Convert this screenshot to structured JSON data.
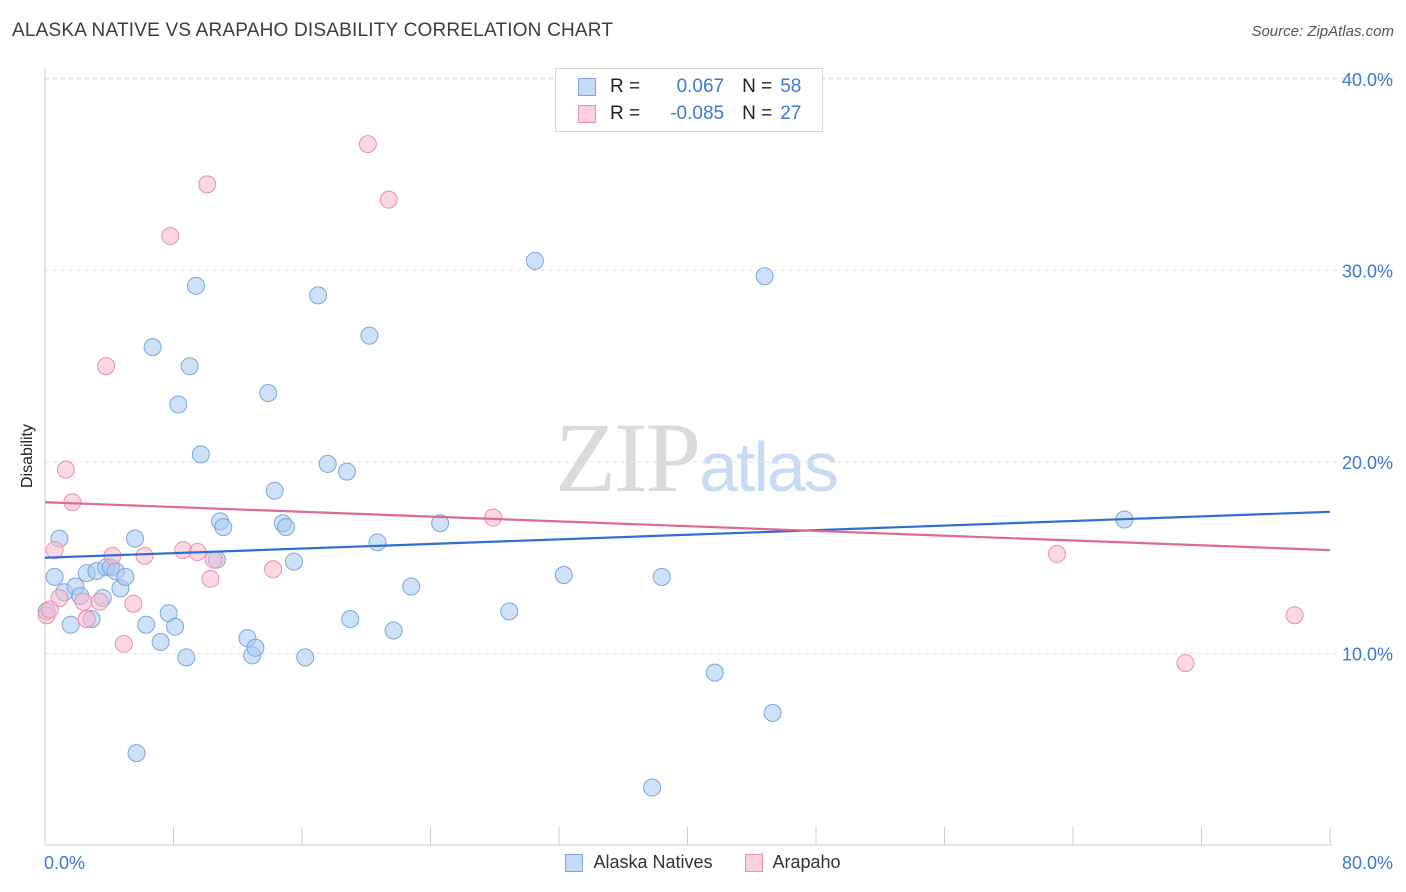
{
  "title": "ALASKA NATIVE VS ARAPAHO DISABILITY CORRELATION CHART",
  "source": "Source: ZipAtlas.com",
  "watermark": {
    "zip": "ZIP",
    "atlas": "atlas"
  },
  "legend": {
    "rows": [
      {
        "r_label": "R =",
        "r_value": "0.067",
        "n_label": "N =",
        "n_value": "58",
        "color": "#a8c8f0"
      },
      {
        "r_label": "R =",
        "r_value": "-0.085",
        "n_label": "N =",
        "n_value": "27",
        "color": "#f5b8cb"
      }
    ]
  },
  "chart_data": {
    "type": "scatter",
    "title": "ALASKA NATIVE VS ARAPAHO DISABILITY CORRELATION CHART",
    "xlabel": "",
    "ylabel": "Disability",
    "xlim": [
      0,
      80
    ],
    "ylim": [
      0,
      40
    ],
    "x_tick_labels": [
      "0.0%",
      "80.0%"
    ],
    "y_ticks": [
      10,
      20,
      30,
      40
    ],
    "y_tick_labels": [
      "10.0%",
      "20.0%",
      "30.0%",
      "40.0%"
    ],
    "grid": "horizontal dashed",
    "legend_position": "bottom-center",
    "series": [
      {
        "name": "Alaska Natives",
        "color": "#a8c8f0",
        "edge": "#7aa7e0",
        "line_color": "#2d6fd1",
        "trend": [
          [
            0,
            15.0
          ],
          [
            80,
            17.4
          ]
        ],
        "points": [
          [
            0.1,
            12.2
          ],
          [
            0.6,
            14.0
          ],
          [
            0.9,
            16.0
          ],
          [
            1.2,
            13.2
          ],
          [
            1.6,
            11.5
          ],
          [
            1.9,
            13.5
          ],
          [
            2.2,
            13.0
          ],
          [
            2.6,
            14.2
          ],
          [
            2.9,
            11.8
          ],
          [
            3.2,
            14.3
          ],
          [
            3.6,
            12.9
          ],
          [
            3.8,
            14.5
          ],
          [
            4.1,
            14.5
          ],
          [
            4.4,
            14.3
          ],
          [
            4.7,
            13.4
          ],
          [
            5.0,
            14.0
          ],
          [
            5.6,
            16.0
          ],
          [
            5.7,
            4.8
          ],
          [
            6.3,
            11.5
          ],
          [
            6.7,
            26.0
          ],
          [
            7.2,
            10.6
          ],
          [
            7.7,
            12.1
          ],
          [
            8.1,
            11.4
          ],
          [
            8.3,
            23.0
          ],
          [
            8.8,
            9.8
          ],
          [
            9.0,
            25.0
          ],
          [
            9.4,
            29.2
          ],
          [
            9.7,
            20.4
          ],
          [
            10.7,
            14.9
          ],
          [
            10.9,
            16.9
          ],
          [
            11.1,
            16.6
          ],
          [
            12.6,
            10.8
          ],
          [
            12.9,
            9.9
          ],
          [
            13.1,
            10.3
          ],
          [
            13.9,
            23.6
          ],
          [
            14.3,
            18.5
          ],
          [
            14.8,
            16.8
          ],
          [
            15.0,
            16.6
          ],
          [
            15.5,
            14.8
          ],
          [
            16.2,
            9.8
          ],
          [
            17.0,
            28.7
          ],
          [
            17.6,
            19.9
          ],
          [
            18.8,
            19.5
          ],
          [
            19.0,
            11.8
          ],
          [
            20.2,
            26.6
          ],
          [
            20.7,
            15.8
          ],
          [
            21.7,
            11.2
          ],
          [
            22.8,
            13.5
          ],
          [
            24.6,
            16.8
          ],
          [
            28.9,
            12.2
          ],
          [
            30.5,
            30.5
          ],
          [
            32.3,
            14.1
          ],
          [
            37.8,
            3.0
          ],
          [
            38.4,
            14.0
          ],
          [
            41.7,
            9.0
          ],
          [
            44.8,
            29.7
          ],
          [
            45.3,
            6.9
          ],
          [
            67.2,
            17.0
          ]
        ]
      },
      {
        "name": "Arapaho",
        "color": "#f5b8cb",
        "edge": "#ec8fae",
        "line_color": "#e0698f",
        "trend": [
          [
            0,
            17.9
          ],
          [
            80,
            15.4
          ]
        ],
        "points": [
          [
            0.1,
            12.0
          ],
          [
            0.6,
            15.4
          ],
          [
            0.9,
            12.9
          ],
          [
            1.3,
            19.6
          ],
          [
            1.7,
            17.9
          ],
          [
            2.4,
            12.7
          ],
          [
            2.6,
            11.8
          ],
          [
            3.4,
            12.7
          ],
          [
            3.8,
            25.0
          ],
          [
            4.2,
            15.1
          ],
          [
            4.9,
            10.5
          ],
          [
            5.5,
            12.6
          ],
          [
            6.2,
            15.1
          ],
          [
            7.8,
            31.8
          ],
          [
            8.6,
            15.4
          ],
          [
            9.5,
            15.3
          ],
          [
            10.1,
            34.5
          ],
          [
            10.3,
            13.9
          ],
          [
            10.5,
            14.9
          ],
          [
            14.2,
            14.4
          ],
          [
            20.1,
            36.6
          ],
          [
            21.4,
            33.7
          ],
          [
            27.9,
            17.1
          ],
          [
            63.0,
            15.2
          ],
          [
            71.0,
            9.5
          ],
          [
            77.8,
            12.0
          ],
          [
            0.3,
            12.3
          ]
        ]
      }
    ]
  },
  "bottom_legend": [
    {
      "label": "Alaska Natives",
      "color": "#a8c8f0",
      "edge": "#7aa7e0"
    },
    {
      "label": "Arapaho",
      "color": "#f5b8cb",
      "edge": "#ec8fae"
    }
  ]
}
